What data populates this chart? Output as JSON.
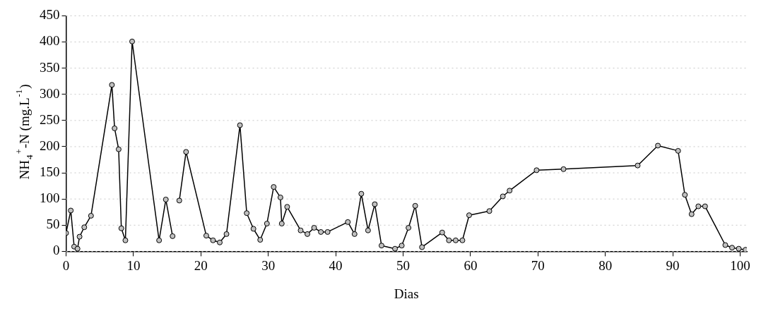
{
  "chart_data": {
    "type": "line",
    "xlabel": "Dias",
    "ylabel": "NH$_{4}$$^{+}$-N (mg.L$^{-1}$)",
    "xlim": [
      0,
      101
    ],
    "xticks": [
      0,
      10,
      20,
      30,
      40,
      50,
      60,
      70,
      80,
      90,
      100
    ],
    "ylim": [
      0,
      450
    ],
    "yticks": [
      0,
      50,
      100,
      150,
      200,
      250,
      300,
      350,
      400,
      450
    ],
    "grid": "y",
    "marker": "circle",
    "line_style": "solid",
    "legend": false,
    "series": [
      {
        "color": "#000000",
        "x": [
          0,
          0.7,
          1.2,
          1.7,
          2,
          2.7,
          3.7,
          6.8,
          7.2,
          7.8,
          8.2,
          8.8,
          9.8,
          13.8,
          14.8,
          15.8
        ],
        "values": [
          35,
          78,
          9,
          5,
          28,
          46,
          68,
          318,
          235,
          195,
          44,
          21,
          401,
          21,
          99,
          29
        ]
      },
      {
        "color": "#000000",
        "x": [
          16.8,
          17.8,
          20.8,
          21.8,
          22.8,
          23.8,
          25.8,
          26.8,
          27.8,
          28.8,
          29.8,
          30.8,
          31.8,
          32,
          32.8,
          34.8,
          35.8,
          36.8,
          37.8,
          38.8,
          41.8,
          42.8,
          43.8,
          44.8,
          45.8,
          46.8,
          48.8,
          49.8,
          50.8,
          51.8,
          52.8,
          55.8,
          56.8,
          57.8,
          58.8,
          59.8,
          62.8,
          64.8,
          65.8,
          69.8,
          73.8,
          84.8,
          87.8,
          90.8,
          91.8,
          92.8,
          93.8,
          94.8,
          97.8,
          98.8,
          99.8,
          100.8
        ],
        "values": [
          97,
          190,
          30,
          21,
          17,
          33,
          241,
          73,
          43,
          22,
          53,
          123,
          103,
          53,
          85,
          40,
          33,
          45,
          37,
          37,
          56,
          33,
          110,
          40,
          90,
          11,
          5,
          11,
          45,
          87,
          8,
          36,
          21,
          21,
          21,
          69,
          77,
          105,
          116,
          155,
          157,
          164,
          202,
          192,
          108,
          71,
          86,
          86,
          12,
          7,
          5,
          3
        ]
      }
    ]
  }
}
